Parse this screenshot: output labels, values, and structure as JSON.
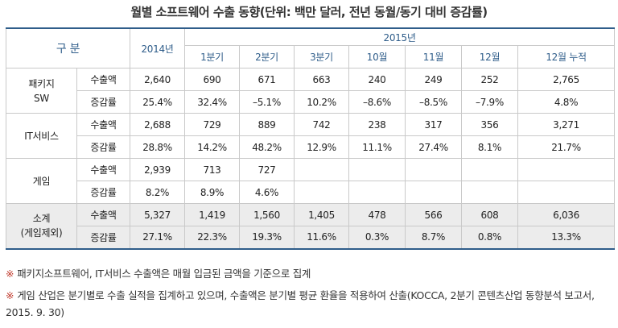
{
  "title": "월별 소프트웨어 수출 동향(단위: 백만 달러, 전년 동월/동기 대비 증감률)",
  "header": {
    "category": "구 분",
    "year_prev": "2014년",
    "year_cur": "2015년",
    "periods": [
      "1분기",
      "2분기",
      "3분기",
      "10월",
      "11월",
      "12월",
      "12월 누적"
    ]
  },
  "rows": [
    {
      "category": "패키지\nSW",
      "export": {
        "label": "수출액",
        "y2014": "2,640",
        "values": [
          "690",
          "671",
          "663",
          "240",
          "249",
          "252",
          "2,765"
        ]
      },
      "growth": {
        "label": "증감률",
        "y2014": "25.4%",
        "values": [
          "32.4%",
          "–5.1%",
          "10.2%",
          "–8.6%",
          "–8.5%",
          "–7.9%",
          "4.8%"
        ]
      }
    },
    {
      "category": "IT서비스",
      "export": {
        "label": "수출액",
        "y2014": "2,688",
        "values": [
          "729",
          "889",
          "742",
          "238",
          "317",
          "356",
          "3,271"
        ]
      },
      "growth": {
        "label": "증감률",
        "y2014": "28.8%",
        "values": [
          "14.2%",
          "48.2%",
          "12.9%",
          "11.1%",
          "27.4%",
          "8.1%",
          "21.7%"
        ]
      }
    },
    {
      "category": "게임",
      "export": {
        "label": "수출액",
        "y2014": "2,939",
        "values": [
          "713",
          "727",
          "",
          "",
          "",
          "",
          ""
        ]
      },
      "growth": {
        "label": "증감률",
        "y2014": "8.2%",
        "values": [
          "8.9%",
          "4.6%",
          "",
          "",
          "",
          "",
          ""
        ]
      }
    },
    {
      "category": "소계\n(게임제외)",
      "export": {
        "label": "수출액",
        "y2014": "5,327",
        "values": [
          "1,419",
          "1,560",
          "1,405",
          "478",
          "566",
          "608",
          "6,036"
        ]
      },
      "growth": {
        "label": "증감률",
        "y2014": "27.1%",
        "values": [
          "22.3%",
          "19.3%",
          "11.6%",
          "0.3%",
          "8.7%",
          "0.8%",
          "13.3%"
        ]
      }
    }
  ],
  "notes": [
    {
      "mark": "※",
      "text": "패키지소프트웨어, IT서비스 수출액은 매월 입금된 금액을 기준으로 집계"
    },
    {
      "mark": "※",
      "text": "게임 산업은 분기별로 수출 실적을 집계하고 있으며, 수출액은 분기별 평균 환율을 적용하여 산출(KOCCA, 2분기 콘텐츠산업 동향분석 보고서, 2015. 9. 30)"
    }
  ]
}
